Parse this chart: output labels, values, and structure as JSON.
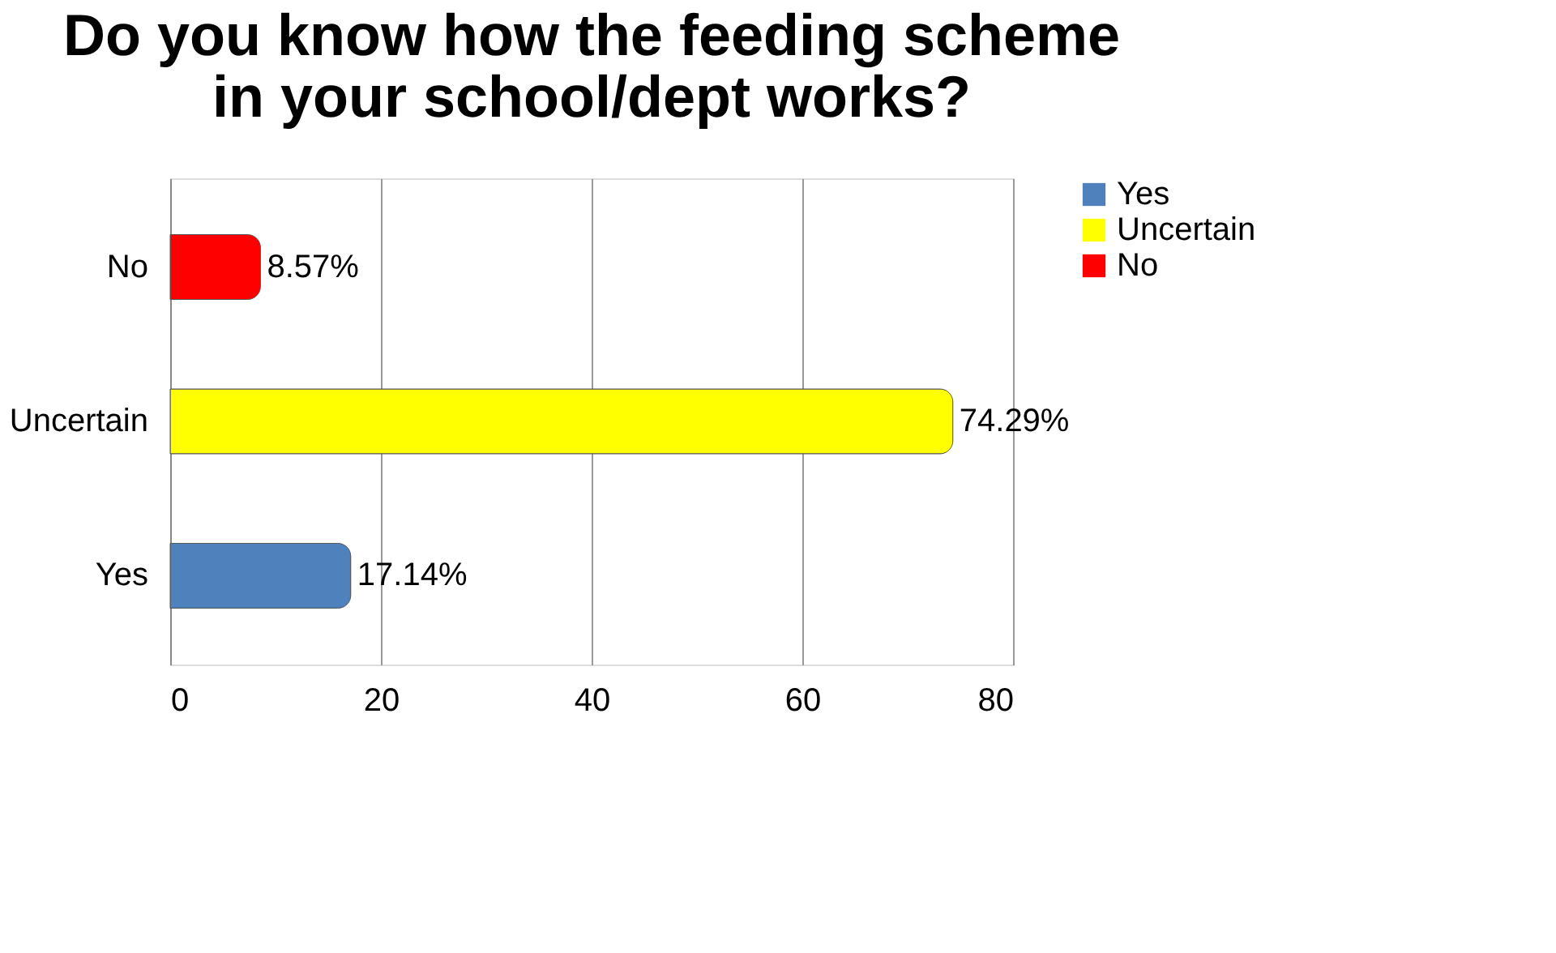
{
  "chart_data": {
    "type": "bar",
    "orientation": "horizontal",
    "title": "Do you know how the feeding scheme in your school/dept works?",
    "categories": [
      "No",
      "Uncertain",
      "Yes"
    ],
    "series": [
      {
        "name": "Yes",
        "color": "#4f81bd",
        "values": [
          null,
          null,
          17.14
        ],
        "value_labels": [
          null,
          null,
          "17.14%"
        ]
      },
      {
        "name": "Uncertain",
        "color": "#ffff00",
        "values": [
          null,
          74.29,
          null
        ],
        "value_labels": [
          null,
          "74.29%",
          null
        ]
      },
      {
        "name": "No",
        "color": "#ff0000",
        "values": [
          8.57,
          null,
          null
        ],
        "value_labels": [
          "8.57%",
          null,
          null
        ]
      }
    ],
    "xlim": [
      0,
      80
    ],
    "xticks": [
      0,
      20,
      40,
      60,
      80
    ],
    "grid": "x",
    "legend": "right"
  }
}
